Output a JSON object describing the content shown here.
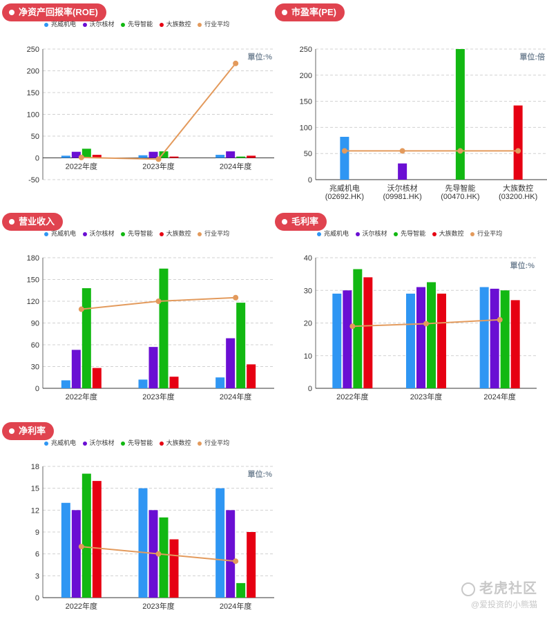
{
  "legend_items": [
    {
      "name": "兆威机电",
      "color": "#2f96f3"
    },
    {
      "name": "沃尔核材",
      "color": "#6a0fd3"
    },
    {
      "name": "先导智能",
      "color": "#12b812"
    },
    {
      "name": "大族数控",
      "color": "#e60012"
    },
    {
      "name": "行业平均",
      "color": "#e39a5c"
    }
  ],
  "watermark": {
    "title": "老虎社区",
    "subtitle": "@爱投资的小熊猫"
  },
  "chart_data": [
    {
      "id": "roe",
      "type": "bar",
      "title": "净资产回报率(ROE)",
      "unit": "單位:%",
      "categories": [
        "2022年度",
        "2023年度",
        "2024年度"
      ],
      "ylim": [
        -50,
        250
      ],
      "yticks": [
        -50,
        0,
        50,
        100,
        150,
        200,
        250
      ],
      "ytick_labels": [
        "-50",
        "0",
        "50",
        "100",
        "150",
        "200",
        "250"
      ],
      "grid": true,
      "series": [
        {
          "name": "兆威机电",
          "values": [
            5,
            6,
            7
          ]
        },
        {
          "name": "沃尔核材",
          "values": [
            14,
            14,
            15
          ]
        },
        {
          "name": "先导智能",
          "values": [
            21,
            15,
            3
          ]
        },
        {
          "name": "大族数控",
          "values": [
            7,
            3,
            5
          ]
        }
      ],
      "average": {
        "name": "行业平均",
        "values": [
          1,
          -3,
          217
        ]
      }
    },
    {
      "id": "pe",
      "type": "bar",
      "title": "市盈率(PE)",
      "unit": "單位:倍",
      "categories": [
        "兆威机电\n(02692.HK)",
        "沃尔核材\n(09981.HK)",
        "先导智能\n(00470.HK)",
        "大族数控\n(03200.HK)"
      ],
      "ylim": [
        0,
        250
      ],
      "yticks": [
        0,
        50,
        100,
        150,
        200,
        250
      ],
      "ytick_labels": [
        "0",
        "50",
        "100",
        "150",
        "200",
        "250"
      ],
      "grid": true,
      "series": [
        {
          "name": "市盈率",
          "values": [
            82,
            31,
            250,
            142
          ]
        }
      ],
      "average": {
        "name": "行业平均",
        "values": [
          55,
          55,
          55,
          55
        ]
      }
    },
    {
      "id": "revenue",
      "type": "bar",
      "title": "营业收入",
      "unit": "",
      "categories": [
        "2022年度",
        "2023年度",
        "2024年度"
      ],
      "ylim": [
        0,
        180
      ],
      "yticks": [
        0,
        30,
        60,
        90,
        120,
        150,
        180
      ],
      "ytick_labels": [
        "0",
        "30",
        "60",
        "90",
        "120",
        "150",
        "180"
      ],
      "grid": true,
      "series": [
        {
          "name": "兆威机电",
          "values": [
            11,
            12,
            15
          ]
        },
        {
          "name": "沃尔核材",
          "values": [
            53,
            57,
            69
          ]
        },
        {
          "name": "先导智能",
          "values": [
            138,
            165,
            118
          ]
        },
        {
          "name": "大族数控",
          "values": [
            28,
            16,
            33
          ]
        }
      ],
      "average": {
        "name": "行业平均",
        "values": [
          109,
          120,
          125
        ]
      }
    },
    {
      "id": "gross",
      "type": "bar",
      "title": "毛利率",
      "unit": "單位:%",
      "categories": [
        "2022年度",
        "2023年度",
        "2024年度"
      ],
      "ylim": [
        0,
        40
      ],
      "yticks": [
        0,
        10,
        20,
        30,
        40
      ],
      "ytick_labels": [
        "0",
        "10",
        "20",
        "30",
        "40"
      ],
      "grid": true,
      "series": [
        {
          "name": "兆威机电",
          "values": [
            29,
            29,
            31
          ]
        },
        {
          "name": "沃尔核材",
          "values": [
            30,
            31,
            30.5
          ]
        },
        {
          "name": "先导智能",
          "values": [
            36.5,
            32.5,
            30
          ]
        },
        {
          "name": "大族数控",
          "values": [
            34,
            29,
            27
          ]
        }
      ],
      "average": {
        "name": "行业平均",
        "values": [
          19,
          19.8,
          21
        ]
      }
    },
    {
      "id": "net",
      "type": "bar",
      "title": "净利率",
      "unit": "單位:%",
      "categories": [
        "2022年度",
        "2023年度",
        "2024年度"
      ],
      "ylim": [
        0,
        18
      ],
      "yticks": [
        0,
        3,
        6,
        9,
        12,
        15,
        18
      ],
      "ytick_labels": [
        "0",
        "3",
        "6",
        "9",
        "12",
        "15",
        "18"
      ],
      "grid": true,
      "series": [
        {
          "name": "兆威机电",
          "values": [
            13,
            15,
            15
          ]
        },
        {
          "name": "沃尔核材",
          "values": [
            12,
            12,
            12
          ]
        },
        {
          "name": "先导智能",
          "values": [
            17,
            11,
            2
          ]
        },
        {
          "name": "大族数控",
          "values": [
            16,
            8,
            9
          ]
        }
      ],
      "average": {
        "name": "行业平均",
        "values": [
          7,
          6,
          5
        ]
      }
    }
  ]
}
